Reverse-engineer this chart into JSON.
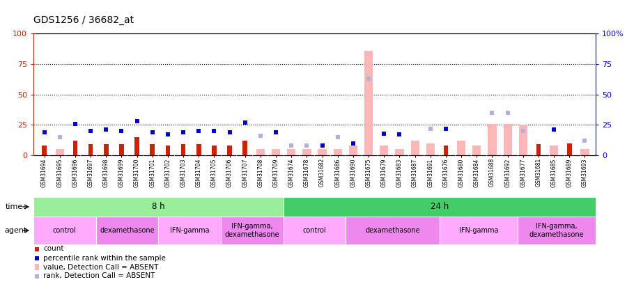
{
  "title": "GDS1256 / 36682_at",
  "samples": [
    "GSM31694",
    "GSM31695",
    "GSM31696",
    "GSM31697",
    "GSM31698",
    "GSM31699",
    "GSM31700",
    "GSM31701",
    "GSM31702",
    "GSM31703",
    "GSM31704",
    "GSM31705",
    "GSM31706",
    "GSM31707",
    "GSM31708",
    "GSM31709",
    "GSM31674",
    "GSM31678",
    "GSM31682",
    "GSM31686",
    "GSM31690",
    "GSM31675",
    "GSM31679",
    "GSM31683",
    "GSM31687",
    "GSM31691",
    "GSM31676",
    "GSM31680",
    "GSM31684",
    "GSM31688",
    "GSM31692",
    "GSM31677",
    "GSM31681",
    "GSM31685",
    "GSM31689",
    "GSM31693"
  ],
  "count": [
    8,
    null,
    12,
    9,
    9,
    9,
    15,
    9,
    8,
    9,
    9,
    8,
    8,
    12,
    null,
    null,
    null,
    null,
    null,
    null,
    null,
    null,
    null,
    null,
    null,
    null,
    8,
    null,
    null,
    null,
    null,
    null,
    9,
    null,
    10,
    null
  ],
  "percentile_rank": [
    19,
    null,
    26,
    20,
    21,
    20,
    28,
    19,
    17,
    19,
    20,
    20,
    19,
    27,
    null,
    19,
    null,
    null,
    8,
    null,
    10,
    null,
    18,
    17,
    null,
    null,
    22,
    null,
    null,
    null,
    null,
    null,
    null,
    21,
    null,
    null
  ],
  "value_absent": [
    null,
    5,
    null,
    null,
    null,
    null,
    null,
    null,
    null,
    null,
    null,
    null,
    null,
    null,
    5,
    5,
    5,
    5,
    5,
    5,
    8,
    86,
    8,
    5,
    12,
    10,
    null,
    12,
    8,
    26,
    26,
    25,
    null,
    8,
    null,
    5
  ],
  "rank_absent": [
    null,
    15,
    null,
    null,
    null,
    null,
    null,
    null,
    null,
    null,
    null,
    null,
    null,
    null,
    16,
    null,
    8,
    8,
    null,
    15,
    null,
    63,
    18,
    17,
    null,
    22,
    null,
    null,
    null,
    35,
    35,
    20,
    null,
    null,
    null,
    12
  ],
  "time_groups": [
    {
      "label": "8 h",
      "start": 0,
      "end": 16,
      "color": "#99ee99"
    },
    {
      "label": "24 h",
      "start": 16,
      "end": 36,
      "color": "#44cc66"
    }
  ],
  "agent_groups": [
    {
      "label": "control",
      "start": 0,
      "end": 4,
      "color": "#ffaaff"
    },
    {
      "label": "dexamethasone",
      "start": 4,
      "end": 8,
      "color": "#ee88ee"
    },
    {
      "label": "IFN-gamma",
      "start": 8,
      "end": 12,
      "color": "#ffaaff"
    },
    {
      "label": "IFN-gamma,\ndexamethasone",
      "start": 12,
      "end": 16,
      "color": "#ee88ee"
    },
    {
      "label": "control",
      "start": 16,
      "end": 20,
      "color": "#ffaaff"
    },
    {
      "label": "dexamethasone",
      "start": 20,
      "end": 26,
      "color": "#ee88ee"
    },
    {
      "label": "IFN-gamma",
      "start": 26,
      "end": 31,
      "color": "#ffaaff"
    },
    {
      "label": "IFN-gamma,\ndexamethasone",
      "start": 31,
      "end": 36,
      "color": "#ee88ee"
    }
  ],
  "ylim": [
    0,
    100
  ],
  "yticks": [
    0,
    25,
    50,
    75,
    100
  ],
  "dotted_lines": [
    25,
    50,
    75
  ],
  "color_count": "#cc2200",
  "color_percentile": "#0000cc",
  "color_value_absent": "#ffb6b6",
  "color_rank_absent": "#b0b0dd",
  "left_yaxis_color": "#cc2200",
  "right_yaxis_color": "#0000cc",
  "bg_color": "#ffffff"
}
